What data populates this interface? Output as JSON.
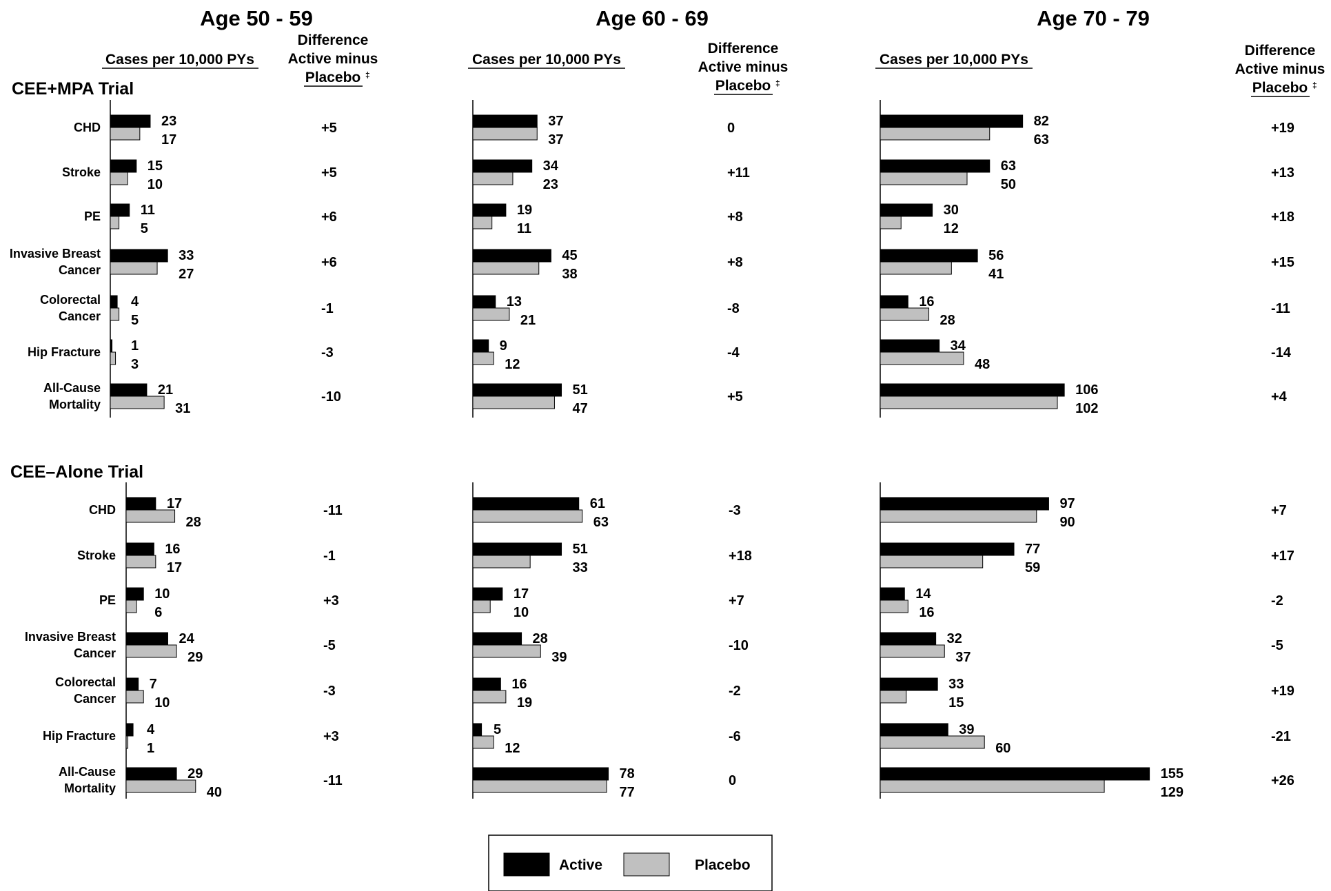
{
  "header": {
    "age_groups": [
      "Age 50 - 59",
      "Age 60 - 69",
      "Age 70 - 79"
    ],
    "cases_label": "Cases per 10,000 PYs",
    "diff_label_line1": "Difference",
    "diff_label_line2": "Active minus",
    "diff_label_line3": "Placebo",
    "dagger": "‡"
  },
  "legend": {
    "active_label": "Active",
    "placebo_label": "Placebo"
  },
  "colors": {
    "active": "#000000",
    "placebo": "#c0c0c0",
    "stroke": "#000000"
  },
  "chart_data": [
    {
      "type": "bar",
      "orientation": "horizontal",
      "title": "CEE+MPA Trial",
      "categories": [
        [
          "CHD"
        ],
        [
          "Stroke"
        ],
        [
          "PE"
        ],
        [
          "Invasive Breast",
          "Cancer"
        ],
        [
          "Colorectal",
          "Cancer"
        ],
        [
          "Hip Fracture"
        ],
        [
          "All-Cause",
          "Mortality"
        ]
      ],
      "groups": [
        {
          "name": "Age 50 - 59",
          "active": [
            23,
            15,
            11,
            33,
            4,
            1,
            21
          ],
          "placebo": [
            17,
            10,
            5,
            27,
            5,
            3,
            31
          ],
          "difference": [
            "+5",
            "+5",
            "+6",
            "+6",
            "-1",
            "-3",
            "-10"
          ]
        },
        {
          "name": "Age 60 - 69",
          "active": [
            37,
            34,
            19,
            45,
            13,
            9,
            51
          ],
          "placebo": [
            37,
            23,
            11,
            38,
            21,
            12,
            47
          ],
          "difference": [
            "0",
            "+11",
            "+8",
            "+8",
            "-8",
            "-4",
            "+5"
          ]
        },
        {
          "name": "Age 70 - 79",
          "active": [
            82,
            63,
            30,
            56,
            16,
            34,
            106
          ],
          "placebo": [
            63,
            50,
            12,
            41,
            28,
            48,
            102
          ],
          "difference": [
            "+19",
            "+13",
            "+18",
            "+15",
            "-11",
            "-14",
            "+4"
          ]
        }
      ]
    },
    {
      "type": "bar",
      "orientation": "horizontal",
      "title": "CEE–Alone Trial",
      "categories": [
        [
          "CHD"
        ],
        [
          "Stroke"
        ],
        [
          "PE"
        ],
        [
          "Invasive Breast",
          "Cancer"
        ],
        [
          "Colorectal",
          "Cancer"
        ],
        [
          "Hip Fracture"
        ],
        [
          "All-Cause",
          "Mortality"
        ]
      ],
      "groups": [
        {
          "name": "Age 50 - 59",
          "active": [
            17,
            16,
            10,
            24,
            7,
            4,
            29
          ],
          "placebo": [
            28,
            17,
            6,
            29,
            10,
            1,
            40
          ],
          "difference": [
            "-11",
            "-1",
            "+3",
            "-5",
            "-3",
            "+3",
            "-11"
          ]
        },
        {
          "name": "Age 60 - 69",
          "active": [
            61,
            51,
            17,
            28,
            16,
            5,
            78
          ],
          "placebo": [
            63,
            33,
            10,
            39,
            19,
            12,
            77
          ],
          "difference": [
            "-3",
            "+18",
            "+7",
            "-10",
            "-2",
            "-6",
            "0"
          ]
        },
        {
          "name": "Age 70 - 79",
          "active": [
            97,
            77,
            14,
            32,
            33,
            39,
            155
          ],
          "placebo": [
            90,
            59,
            16,
            37,
            15,
            60,
            129
          ],
          "difference": [
            "+7",
            "+17",
            "-2",
            "-5",
            "+19",
            "-21",
            "+26"
          ]
        }
      ]
    }
  ]
}
